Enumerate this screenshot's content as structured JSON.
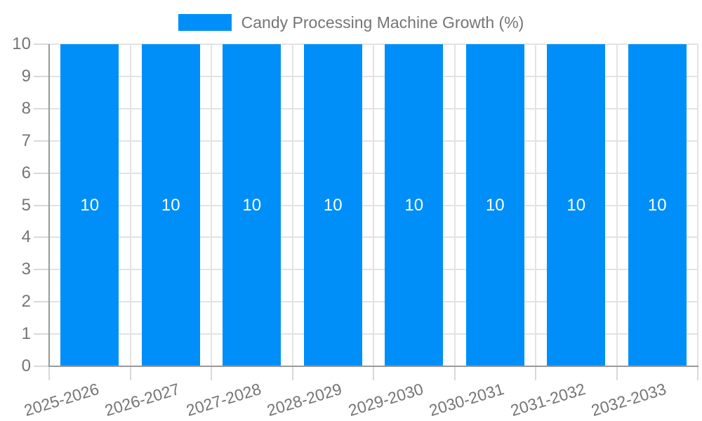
{
  "chart_data": {
    "type": "bar",
    "title": "Candy Processing Machine Growth (%)",
    "categories": [
      "2025-2026",
      "2026-2027",
      "2027-2028",
      "2028-2029",
      "2029-2030",
      "2030-2031",
      "2031-2032",
      "2032-2033"
    ],
    "series": [
      {
        "name": "Candy Processing Machine Growth (%)",
        "values": [
          10,
          10,
          10,
          10,
          10,
          10,
          10,
          10
        ]
      }
    ],
    "value_labels": [
      "10",
      "10",
      "10",
      "10",
      "10",
      "10",
      "10",
      "10"
    ],
    "xlabel": "",
    "ylabel": "",
    "ylim": [
      0,
      10
    ],
    "y_ticks": [
      0,
      1,
      2,
      3,
      4,
      5,
      6,
      7,
      8,
      9,
      10
    ],
    "grid": true,
    "legend_position": "top",
    "colors": {
      "bar": "#008ff8",
      "grid": "#e3e3e3",
      "tick": "#d9d9d9",
      "axis": "#999999",
      "text": "#757575",
      "value_label": "#ffffff"
    }
  }
}
